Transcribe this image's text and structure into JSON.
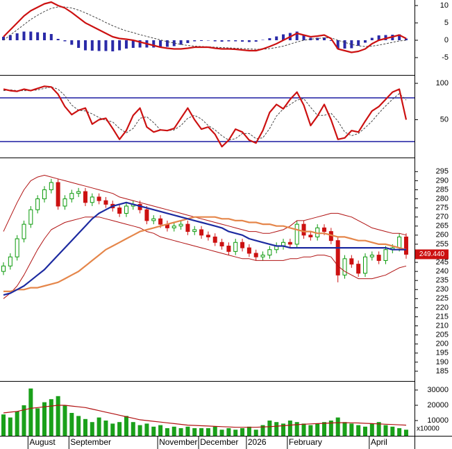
{
  "chart_data": [
    {
      "type": "combo",
      "ylim": [
        -9.8,
        11.6
      ],
      "yticks": [
        10,
        5,
        0,
        -5
      ],
      "series": [
        {
          "style": "bar",
          "color": "#2a2aa8",
          "values": [
            1,
            1.5,
            2,
            2.5,
            2.5,
            2.3,
            2.2,
            1.8,
            0.4,
            -0.3,
            -1.3,
            -2.2,
            -2.9,
            -3,
            -3.1,
            -3.1,
            -3.2,
            -2.9,
            -2.4,
            -2.2,
            -2.1,
            -2.1,
            -2.1,
            -2.1,
            -1.9,
            -1.7,
            -1.3,
            -0.8,
            -0.3,
            -0.2,
            -0.1,
            -0.3,
            -0.4,
            -0.3,
            -0.3,
            -0.4,
            -0.5,
            -0.4,
            0.1,
            0.6,
            1.1,
            1.7,
            2.1,
            2.5,
            1.5,
            0.7,
            0.7,
            0.8,
            -0.2,
            -2.5,
            -2.4,
            -2.3,
            -1.6,
            -0.7,
            0.7,
            1.4,
            1.5,
            1.6,
            1.7,
            0.5
          ]
        },
        {
          "style": "dashed",
          "color": "#444444",
          "values": [
            0,
            1.5,
            3,
            4.5,
            6,
            7.2,
            8.3,
            9.2,
            9.6,
            9.6,
            9.3,
            8.7,
            7.9,
            7,
            6.1,
            5.1,
            4.2,
            3.4,
            2.7,
            2.2,
            1.6,
            1.1,
            0.6,
            0.1,
            -0.4,
            -0.8,
            -1.2,
            -1.5,
            -1.7,
            -1.8,
            -1.9,
            -2,
            -2.1,
            -2.2,
            -2.3,
            -2.4,
            -2.5,
            -2.6,
            -2.6,
            -2.4,
            -2.1,
            -1.7,
            -1.1,
            -0.5,
            0,
            0.3,
            0.5,
            0.7,
            0.7,
            0,
            -0.6,
            -1.2,
            -1.6,
            -1.8,
            -1.7,
            -1.4,
            -1,
            -0.6,
            -0.2,
            0
          ]
        },
        {
          "style": "line",
          "color": "#cc1111",
          "values": [
            1,
            3,
            5,
            7,
            8.5,
            9.5,
            10.5,
            11,
            10,
            9.3,
            8,
            6.5,
            5,
            4,
            3,
            2,
            1,
            0.5,
            0.3,
            0,
            -0.5,
            -1,
            -1.5,
            -2,
            -2.3,
            -2.5,
            -2.5,
            -2.3,
            -2,
            -2,
            -2,
            -2.3,
            -2.5,
            -2.5,
            -2.6,
            -2.8,
            -3,
            -3,
            -2.5,
            -1.8,
            -1,
            0,
            1,
            2,
            1.5,
            1,
            1.2,
            1.5,
            0.5,
            -2.5,
            -3,
            -3.5,
            -3.2,
            -2.5,
            -1,
            0,
            0.5,
            1,
            1.5,
            0.5
          ]
        }
      ]
    },
    {
      "type": "line",
      "ylim": [
        -1,
        109.6
      ],
      "yticks": [
        100,
        50
      ],
      "hlines": [
        80,
        20
      ],
      "hline_color": "#1a1aa0",
      "series": [
        {
          "style": "dashed",
          "color": "#444444",
          "values": [
            90,
            91,
            90,
            90,
            90,
            91,
            93,
            95,
            92,
            83,
            70,
            63,
            62,
            58,
            53,
            49,
            47,
            38,
            32,
            38,
            52,
            54,
            46,
            36,
            35,
            36,
            42,
            52,
            56,
            51,
            42,
            36,
            28,
            22,
            24,
            31,
            31,
            24,
            25,
            38,
            55,
            65,
            71,
            77,
            79,
            67,
            56,
            56,
            59,
            48,
            33,
            28,
            31,
            39,
            48,
            59,
            69,
            78,
            86,
            77
          ]
        },
        {
          "style": "line",
          "color": "#cc1111",
          "values": [
            92,
            90,
            89,
            92,
            90,
            93,
            96,
            95,
            85,
            68,
            57,
            63,
            66,
            44,
            50,
            52,
            38,
            23,
            35,
            56,
            66,
            40,
            33,
            36,
            35,
            38,
            52,
            66,
            50,
            37,
            40,
            30,
            13,
            22,
            37,
            33,
            22,
            18,
            35,
            60,
            71,
            65,
            78,
            88,
            70,
            42,
            55,
            71,
            50,
            23,
            25,
            35,
            33,
            48,
            62,
            68,
            78,
            88,
            92,
            50
          ]
        }
      ]
    },
    {
      "type": "candlestick",
      "ylim": [
        180,
        302
      ],
      "yticks": [
        185,
        190,
        195,
        200,
        205,
        210,
        215,
        220,
        225,
        230,
        235,
        240,
        245,
        250,
        255,
        260,
        265,
        270,
        275,
        280,
        285,
        290,
        295
      ],
      "up_color": "#0a9a0a",
      "down_color": "#cc1111",
      "last_price": {
        "value": 249.44,
        "label": "249.440"
      },
      "ohlc": {
        "open": [
          240,
          243,
          248,
          258,
          266,
          274,
          280,
          285,
          289,
          276,
          280,
          283,
          284,
          278,
          281,
          279,
          277,
          275,
          272,
          276,
          277,
          274,
          268,
          269,
          266,
          264,
          265,
          266,
          262,
          263,
          260,
          259,
          256,
          254,
          251,
          256,
          253,
          250,
          248,
          249,
          252,
          254,
          256,
          255,
          266,
          260,
          259,
          264,
          262,
          257,
          238,
          247,
          244,
          239,
          248,
          249,
          246,
          252,
          253,
          259
        ],
        "high": [
          245,
          250,
          260,
          268,
          276,
          282,
          287,
          291,
          291,
          282,
          285,
          286,
          286,
          283,
          283,
          281,
          279,
          277,
          278,
          279,
          279,
          276,
          271,
          271,
          268,
          267,
          268,
          268,
          265,
          265,
          262,
          261,
          258,
          256,
          258,
          258,
          255,
          252,
          251,
          254,
          256,
          258,
          258,
          268,
          268,
          262,
          266,
          266,
          264,
          259,
          249,
          249,
          246,
          250,
          251,
          251,
          254,
          255,
          261,
          261
        ],
        "low": [
          238,
          241,
          246,
          256,
          264,
          272,
          278,
          283,
          274,
          274,
          278,
          281,
          276,
          276,
          277,
          275,
          273,
          270,
          270,
          274,
          272,
          266,
          266,
          264,
          262,
          262,
          263,
          260,
          260,
          258,
          257,
          254,
          252,
          249,
          249,
          251,
          248,
          246,
          246,
          247,
          250,
          252,
          253,
          253,
          258,
          257,
          257,
          260,
          255,
          234,
          236,
          242,
          237,
          237,
          246,
          244,
          244,
          250,
          251,
          247
        ],
        "close": [
          243,
          248,
          258,
          266,
          274,
          280,
          285,
          289,
          276,
          280,
          283,
          284,
          278,
          281,
          279,
          277,
          275,
          272,
          276,
          277,
          274,
          268,
          269,
          266,
          264,
          265,
          266,
          262,
          263,
          260,
          259,
          256,
          254,
          251,
          256,
          253,
          250,
          248,
          249,
          252,
          254,
          256,
          255,
          266,
          260,
          259,
          264,
          262,
          257,
          238,
          247,
          244,
          239,
          248,
          249,
          246,
          252,
          253,
          259,
          249.44
        ]
      },
      "series": [
        {
          "style": "line",
          "width": 1,
          "color": "#b01010",
          "values": [
            262,
            270,
            278,
            285,
            290,
            292,
            293,
            292,
            291,
            290,
            289,
            288,
            287,
            286,
            285,
            284,
            283,
            281,
            280,
            279,
            278,
            277,
            276,
            275,
            274,
            273,
            272,
            271,
            270,
            269,
            268,
            267,
            266,
            265,
            264,
            263,
            262,
            262,
            261,
            261,
            262,
            263,
            265,
            268,
            268,
            269,
            270,
            271,
            272,
            272,
            271,
            270,
            268,
            266,
            264,
            263,
            262,
            261,
            261,
            260
          ]
        },
        {
          "style": "line",
          "width": 1,
          "color": "#b01010",
          "values": [
            225,
            228,
            232,
            238,
            245,
            252,
            258,
            263,
            265,
            267,
            268,
            269,
            270,
            270,
            270,
            269,
            268,
            267,
            266,
            265,
            264,
            262,
            261,
            259,
            258,
            257,
            256,
            255,
            254,
            253,
            252,
            251,
            250,
            249,
            248,
            247,
            247,
            246,
            246,
            246,
            246,
            246,
            247,
            247,
            248,
            248,
            249,
            249,
            248,
            243,
            240,
            238,
            236,
            236,
            236,
            237,
            238,
            240,
            242,
            243
          ]
        },
        {
          "style": "line",
          "width": 2.2,
          "color": "#e5864a",
          "values": [
            229,
            229,
            230,
            230,
            231,
            231,
            232,
            233,
            234,
            236,
            238,
            240,
            243,
            246,
            249,
            252,
            254,
            256,
            258,
            260,
            262,
            263,
            264,
            265,
            266,
            267,
            268,
            269,
            270,
            270,
            270,
            270,
            269,
            269,
            268,
            268,
            267,
            267,
            266,
            266,
            265,
            265,
            264,
            263,
            262,
            262,
            261,
            261,
            260,
            259,
            259,
            258,
            257,
            257,
            256,
            255,
            255,
            254,
            253,
            252
          ]
        },
        {
          "style": "line",
          "width": 2.2,
          "color": "#1c2aa0",
          "values": [
            227,
            228,
            230,
            232,
            235,
            238,
            241,
            245,
            249,
            253,
            257,
            261,
            265,
            269,
            272,
            274,
            276,
            277,
            278,
            277,
            276,
            275,
            274,
            273,
            272,
            271,
            270,
            269,
            268,
            267,
            266,
            265,
            264,
            262,
            261,
            260,
            258,
            257,
            256,
            255,
            254,
            254,
            253,
            253,
            253,
            253,
            253,
            253,
            253,
            253,
            253,
            253,
            253,
            253,
            253,
            253,
            253,
            252,
            252,
            252
          ]
        }
      ]
    },
    {
      "type": "bar",
      "ylim": [
        0,
        35000
      ],
      "yticks": [
        30000,
        20000,
        10000
      ],
      "unit_label": "x10000",
      "categories": [
        null,
        null,
        null,
        null,
        "August",
        null,
        null,
        null,
        null,
        null,
        "September",
        null,
        null,
        null,
        null,
        null,
        null,
        null,
        null,
        null,
        null,
        null,
        null,
        "November",
        null,
        null,
        null,
        null,
        null,
        "December",
        null,
        null,
        null,
        null,
        null,
        null,
        "2026",
        null,
        null,
        null,
        null,
        null,
        "February",
        null,
        null,
        null,
        null,
        null,
        null,
        null,
        null,
        null,
        null,
        null,
        "April",
        null,
        null,
        null,
        null,
        null
      ],
      "series": [
        {
          "style": "bar",
          "color": "#1aa01a",
          "values": [
            14000,
            12000,
            16000,
            20000,
            31000,
            18000,
            22000,
            24000,
            26000,
            20000,
            15000,
            13000,
            11000,
            9000,
            12000,
            10000,
            8000,
            9000,
            13000,
            9000,
            7000,
            8000,
            6000,
            7000,
            5000,
            6000,
            5000,
            6000,
            5000,
            5000,
            5000,
            6000,
            4000,
            5000,
            4000,
            5000,
            6000,
            4000,
            7000,
            10000,
            9000,
            8000,
            10000,
            9000,
            8000,
            7000,
            8000,
            9000,
            10000,
            12000,
            9000,
            8000,
            7000,
            6000,
            8000,
            9000,
            7000,
            6000,
            5000,
            4000
          ]
        },
        {
          "style": "line",
          "width": 1.2,
          "color": "#b01010",
          "values": [
            15000,
            15500,
            16000,
            17000,
            18000,
            18500,
            19000,
            19500,
            20000,
            20000,
            19500,
            19000,
            18500,
            17500,
            16500,
            15500,
            14500,
            13500,
            12500,
            11500,
            10500,
            10000,
            9500,
            9000,
            8500,
            8000,
            7500,
            7000,
            6800,
            6600,
            6400,
            6200,
            6000,
            5800,
            5600,
            5600,
            5600,
            5600,
            5800,
            6000,
            6300,
            6600,
            7000,
            7300,
            7600,
            7800,
            8000,
            8200,
            8400,
            8600,
            8600,
            8500,
            8400,
            8200,
            8000,
            7800,
            7600,
            7400,
            7200,
            7000
          ]
        }
      ]
    }
  ]
}
